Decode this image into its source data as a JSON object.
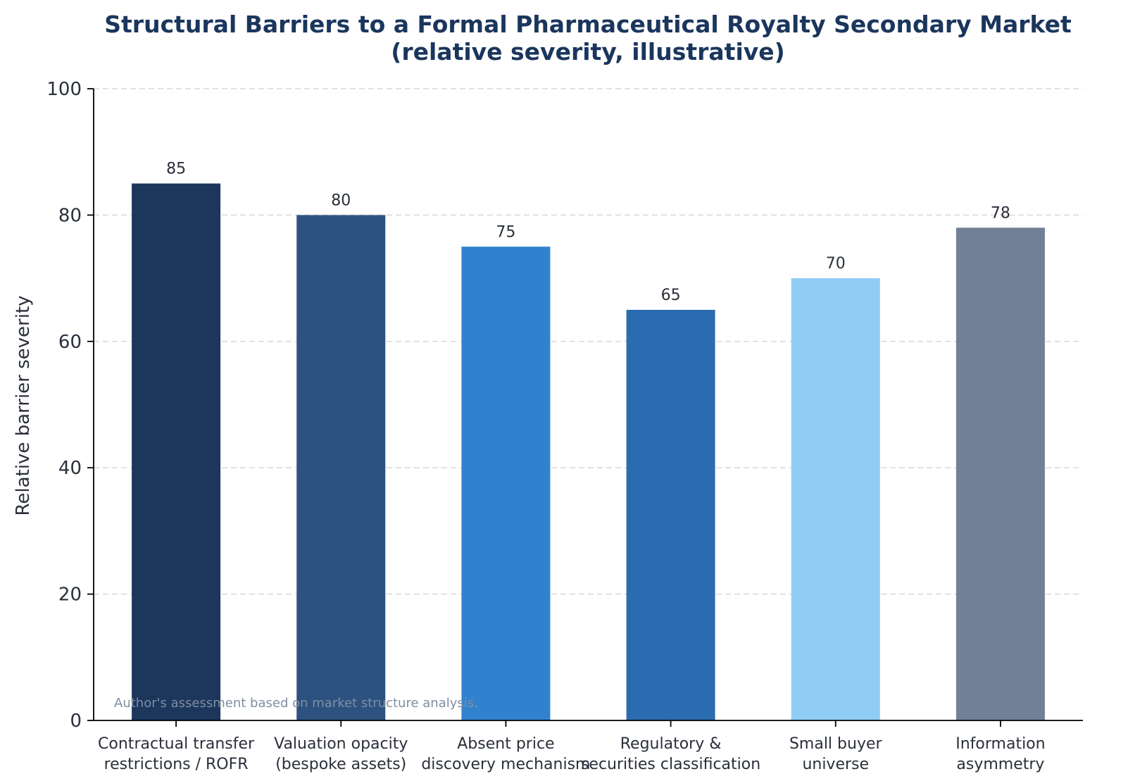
{
  "chart_data": {
    "type": "bar",
    "title_lines": [
      "Structural Barriers to a Formal Pharmaceutical Royalty Secondary Market",
      "(relative severity, illustrative)"
    ],
    "xlabel": "",
    "ylabel": "Relative barrier severity",
    "ylim": [
      0,
      100
    ],
    "yticks": [
      0,
      20,
      40,
      60,
      80,
      100
    ],
    "grid": "y-dashed",
    "categories": [
      [
        "Contractual transfer",
        "restrictions / ROFR"
      ],
      [
        "Valuation opacity",
        "(bespoke assets)"
      ],
      [
        "Absent price",
        "discovery mechanism"
      ],
      [
        "Regulatory &",
        "securities classification"
      ],
      [
        "Small buyer",
        "universe"
      ],
      [
        "Information",
        "asymmetry"
      ]
    ],
    "values": [
      85,
      80,
      75,
      65,
      70,
      78
    ],
    "colors": [
      "#1c365c",
      "#2d527f",
      "#3182ce",
      "#2b6cb0",
      "#90cdf4",
      "#718096"
    ],
    "source_note": "Author's assessment based on market structure analysis."
  },
  "style": {
    "title_color": "#1b365d",
    "axis_color": "#000000",
    "grid_color": "#d9d9d9",
    "text_color": "#2a2f3a",
    "source_color": "#7f8ea3"
  }
}
